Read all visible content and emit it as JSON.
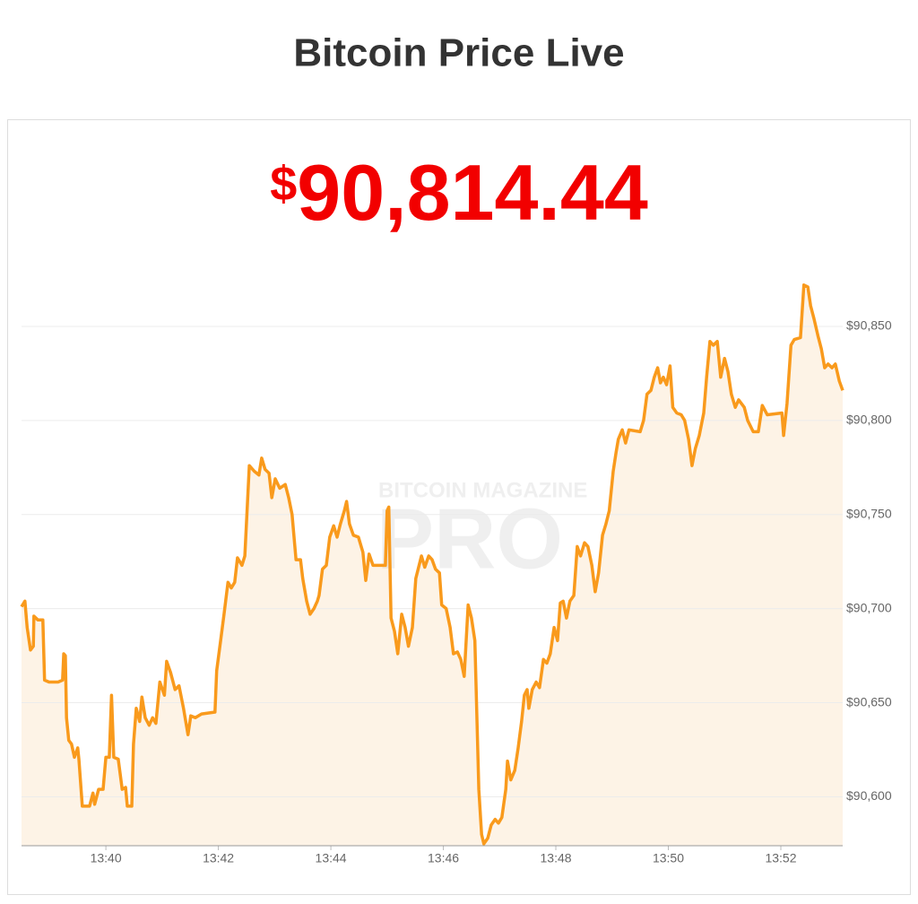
{
  "chart_data": {
    "type": "area-line",
    "title": "Bitcoin Price Live",
    "currency": "$",
    "price": "90,814.44",
    "watermark": [
      "BITCOIN MAGAZINE",
      "PRO"
    ],
    "color": "#f99a1c",
    "fill": "#fdf3e6",
    "grid": true,
    "xlim": [
      818.5,
      833.1
    ],
    "ylim": [
      90574,
      90880
    ],
    "xticks": [
      {
        "value": 820,
        "label": "13:40"
      },
      {
        "value": 822,
        "label": "13:42"
      },
      {
        "value": 824,
        "label": "13:44"
      },
      {
        "value": 826,
        "label": "13:46"
      },
      {
        "value": 828,
        "label": "13:48"
      },
      {
        "value": 830,
        "label": "13:50"
      },
      {
        "value": 832,
        "label": "13:52"
      }
    ],
    "yticks": [
      {
        "value": 90600,
        "label": "$90,600"
      },
      {
        "value": 90650,
        "label": "$90,650"
      },
      {
        "value": 90700,
        "label": "$90,700"
      },
      {
        "value": 90750,
        "label": "$90,750"
      },
      {
        "value": 90800,
        "label": "$90,800"
      },
      {
        "value": 90850,
        "label": "$90,850"
      }
    ],
    "x": [
      818.5,
      818.56,
      818.6,
      818.66,
      818.71,
      818.72,
      818.79,
      818.88,
      818.91,
      818.99,
      819.15,
      819.23,
      819.25,
      819.28,
      819.3,
      819.34,
      819.39,
      819.44,
      819.5,
      819.52,
      819.58,
      819.71,
      819.77,
      819.8,
      819.87,
      819.95,
      820.0,
      820.06,
      820.1,
      820.14,
      820.22,
      820.29,
      820.35,
      820.38,
      820.46,
      820.49,
      820.54,
      820.6,
      820.64,
      820.7,
      820.77,
      820.83,
      820.89,
      820.96,
      821.04,
      821.08,
      821.15,
      821.23,
      821.3,
      821.38,
      821.46,
      821.51,
      821.59,
      821.7,
      821.94,
      821.97,
      822.04,
      822.1,
      822.17,
      822.23,
      822.29,
      822.34,
      822.42,
      822.47,
      822.55,
      822.64,
      822.72,
      822.77,
      822.83,
      822.9,
      822.95,
      823.01,
      823.09,
      823.19,
      823.25,
      823.31,
      823.38,
      823.46,
      823.5,
      823.57,
      823.63,
      823.7,
      823.76,
      823.79,
      823.85,
      823.92,
      823.98,
      824.05,
      824.11,
      824.17,
      824.24,
      824.28,
      824.33,
      824.4,
      824.49,
      824.57,
      824.62,
      824.68,
      824.75,
      824.97,
      825.0,
      825.03,
      825.07,
      825.13,
      825.19,
      825.26,
      825.32,
      825.38,
      825.45,
      825.51,
      825.61,
      825.67,
      825.74,
      825.8,
      825.86,
      825.93,
      825.97,
      826.05,
      826.12,
      826.18,
      826.25,
      826.31,
      826.37,
      826.44,
      826.5,
      826.56,
      826.63,
      826.68,
      826.72,
      826.79,
      826.85,
      826.92,
      826.98,
      827.04,
      827.11,
      827.14,
      827.2,
      827.27,
      827.33,
      827.39,
      827.44,
      827.49,
      827.52,
      827.58,
      827.65,
      827.71,
      827.78,
      827.84,
      827.9,
      827.97,
      828.03,
      828.08,
      828.13,
      828.19,
      828.25,
      828.32,
      828.38,
      828.44,
      828.51,
      828.57,
      828.64,
      828.7,
      828.76,
      828.83,
      828.89,
      828.95,
      829.02,
      829.07,
      829.11,
      829.18,
      829.24,
      829.3,
      829.5,
      829.56,
      829.62,
      829.69,
      829.75,
      829.81,
      829.86,
      829.91,
      829.97,
      830.03,
      830.08,
      830.15,
      830.23,
      830.29,
      830.36,
      830.42,
      830.48,
      830.55,
      830.63,
      830.68,
      830.74,
      830.8,
      830.87,
      830.93,
      831.0,
      831.06,
      831.12,
      831.19,
      831.25,
      831.35,
      831.41,
      831.51,
      831.6,
      831.67,
      831.76,
      832.02,
      832.05,
      832.11,
      832.18,
      832.24,
      832.35,
      832.41,
      832.48,
      832.53,
      832.59,
      832.66,
      832.72,
      832.78,
      832.84,
      832.91,
      832.97,
      833.04,
      833.1
    ],
    "values": [
      90701,
      90704,
      90690,
      90678,
      90680,
      90696,
      90694,
      90694,
      90662,
      90661,
      90661,
      90662,
      90676,
      90675,
      90642,
      90630,
      90628,
      90621,
      90626,
      90620,
      90595,
      90595,
      90602,
      90596,
      90604,
      90604,
      90621,
      90621,
      90654,
      90621,
      90620,
      90604,
      90605,
      90595,
      90595,
      90628,
      90647,
      90640,
      90653,
      90642,
      90638,
      90642,
      90639,
      90661,
      90654,
      90672,
      90666,
      90657,
      90659,
      90647,
      90633,
      90643,
      90642,
      90644,
      90645,
      90667,
      90683,
      90697,
      90714,
      90711,
      90714,
      90727,
      90723,
      90728,
      90776,
      90773,
      90771,
      90780,
      90774,
      90772,
      90759,
      90769,
      90764,
      90766,
      90759,
      90750,
      90726,
      90726,
      90716,
      90704,
      90697,
      90700,
      90704,
      90707,
      90721,
      90723,
      90738,
      90744,
      90738,
      90745,
      90752,
      90757,
      90745,
      90739,
      90738,
      90730,
      90715,
      90729,
      90723,
      90723,
      90752,
      90754,
      90695,
      90688,
      90676,
      90697,
      90690,
      90680,
      90690,
      90716,
      90728,
      90722,
      90728,
      90726,
      90721,
      90719,
      90702,
      90700,
      90690,
      90676,
      90677,
      90673,
      90664,
      90702,
      90695,
      90683,
      90604,
      90580,
      90575,
      90578,
      90585,
      90588,
      90586,
      90589,
      90604,
      90619,
      90609,
      90614,
      90626,
      90640,
      90654,
      90657,
      90647,
      90657,
      90661,
      90658,
      90673,
      90671,
      90676,
      90690,
      90683,
      90703,
      90704,
      90695,
      90704,
      90707,
      90733,
      90728,
      90735,
      90733,
      90723,
      90709,
      90719,
      90739,
      90745,
      90752,
      90773,
      90783,
      90790,
      90795,
      90788,
      90795,
      90794,
      90800,
      90814,
      90816,
      90823,
      90828,
      90820,
      90823,
      90819,
      90829,
      90807,
      90804,
      90803,
      90800,
      90790,
      90776,
      90785,
      90792,
      90804,
      90823,
      90842,
      90840,
      90842,
      90823,
      90833,
      90826,
      90814,
      90807,
      90811,
      90807,
      90800,
      90794,
      90794,
      90808,
      90803,
      90804,
      90792,
      90809,
      90840,
      90843,
      90844,
      90872,
      90871,
      90861,
      90854,
      90845,
      90838,
      90828,
      90830,
      90828,
      90830,
      90821,
      90816
    ]
  }
}
